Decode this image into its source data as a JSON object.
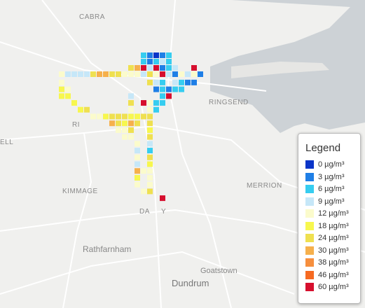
{
  "map": {
    "place_labels": [
      "CABRA",
      "RINGSEND",
      "ELL",
      "RI",
      "KIMMAGE",
      "MERRION",
      "DA",
      "Y",
      "Rathfarnham",
      "Goatstown",
      "Dundrum"
    ],
    "legend": {
      "title": "Legend",
      "items": [
        {
          "label": "0 µg/m³",
          "color": "#0b35c8"
        },
        {
          "label": "3 µg/m³",
          "color": "#1f7fe6"
        },
        {
          "label": "6 µg/m³",
          "color": "#36cdf0"
        },
        {
          "label": "9 µg/m³",
          "color": "#c6e7f8"
        },
        {
          "label": "12 µg/m³",
          "color": "#fbfbcc"
        },
        {
          "label": "18 µg/m³",
          "color": "#f7f74e"
        },
        {
          "label": "24 µg/m³",
          "color": "#efe050"
        },
        {
          "label": "30 µg/m³",
          "color": "#f6b04c"
        },
        {
          "label": "38 µg/m³",
          "color": "#f68f3e"
        },
        {
          "label": "46 µg/m³",
          "color": "#f66a22"
        },
        {
          "label": "60 µg/m³",
          "color": "#d60f2e"
        }
      ]
    }
  }
}
